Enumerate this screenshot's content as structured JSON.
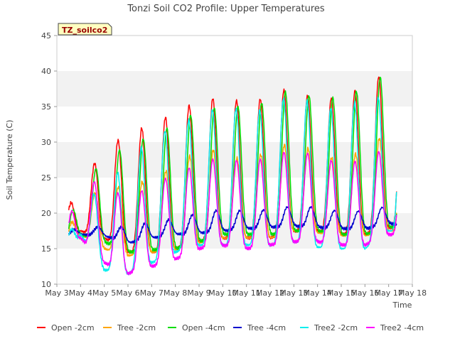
{
  "chart_data": {
    "type": "line",
    "title": "Tonzi Soil CO2 Profile: Upper Temperatures",
    "xlabel": "Time",
    "ylabel": "Soil Temperature (C)",
    "annotation": "TZ_soilco2",
    "ylim": [
      10,
      45
    ],
    "yticks": [
      10,
      15,
      20,
      25,
      30,
      35,
      40,
      45
    ],
    "xlim": [
      3,
      18
    ],
    "xticks": [
      3,
      4,
      5,
      6,
      7,
      8,
      9,
      10,
      11,
      12,
      13,
      14,
      15,
      16,
      17,
      18
    ],
    "xtick_labels": [
      "May 3",
      "May 4",
      "May 5",
      "May 6",
      "May 7",
      "May 8",
      "May 9",
      "May 10",
      "May 11",
      "May 12",
      "May 13",
      "May 14",
      "May 15",
      "May 16",
      "May 17",
      "May 18"
    ],
    "grid": "horizontal bands",
    "legend_position": "bottom",
    "series": [
      {
        "name": "Open -2cm",
        "color": "#ff0000",
        "days": [
          3.5,
          4,
          5,
          6,
          7,
          8,
          9,
          10,
          11,
          12,
          13,
          14,
          15,
          16,
          17
        ],
        "min": [
          16.5,
          17.5,
          16.5,
          14.5,
          14.5,
          15,
          16,
          16.5,
          16.5,
          16.5,
          17.5,
          17.5,
          17,
          17,
          18
        ],
        "max": [
          21,
          23.5,
          29.5,
          30.8,
          32.8,
          34,
          36,
          36.3,
          35.5,
          36.5,
          38,
          35.5,
          36.7,
          37.7,
          40.3
        ],
        "peak_phase": 0.58
      },
      {
        "name": "Tree -2cm",
        "color": "#ffa500",
        "days": [
          3.5,
          4,
          5,
          6,
          7,
          8,
          9,
          10,
          11,
          12,
          13,
          14,
          15,
          16,
          17
        ],
        "min": [
          15.5,
          17,
          15,
          14,
          14.5,
          14.8,
          15.8,
          16.5,
          16.5,
          16.5,
          17.5,
          17.2,
          16.8,
          16.8,
          17.5
        ],
        "max": [
          18,
          21,
          24,
          23.5,
          25,
          26.5,
          29,
          28.8,
          27,
          29,
          30,
          28.5,
          27.3,
          29,
          31.5
        ],
        "peak_phase": 0.6
      },
      {
        "name": "Open -4cm",
        "color": "#00dd00",
        "days": [
          3.5,
          4,
          5,
          6,
          7,
          8,
          9,
          10,
          11,
          12,
          13,
          14,
          15,
          16,
          17
        ],
        "min": [
          15.8,
          17,
          16,
          14.5,
          14.8,
          15,
          16,
          17,
          17,
          17,
          17.5,
          17.5,
          17,
          17,
          18
        ],
        "max": [
          19,
          23.5,
          27.8,
          29.5,
          31,
          32.5,
          34.5,
          35,
          35,
          35.8,
          37.8,
          35.8,
          36.5,
          37.5,
          40
        ],
        "peak_phase": 0.64
      },
      {
        "name": "Tree -4cm",
        "color": "#0000cc",
        "days": [
          3.5,
          4,
          5,
          6,
          7,
          8,
          9,
          10,
          11,
          12,
          13,
          14,
          15,
          16,
          17
        ],
        "min": [
          17,
          17,
          16.8,
          15.8,
          16.5,
          17,
          17.2,
          17.5,
          17.8,
          18,
          18.2,
          18,
          17.8,
          17.8,
          18.5
        ],
        "max": [
          17.5,
          17.8,
          18.2,
          18,
          18.8,
          19.2,
          20,
          20.5,
          20.3,
          20.5,
          21,
          20.8,
          20.2,
          20.3,
          21
        ],
        "peak_phase": 0.72
      },
      {
        "name": "Tree2 -2cm",
        "color": "#00eeee",
        "days": [
          3.5,
          4,
          5,
          6,
          7,
          8,
          9,
          10,
          11,
          12,
          13,
          14,
          15,
          16,
          17
        ],
        "min": [
          14.5,
          17,
          12,
          11.5,
          13,
          14.5,
          15.5,
          15.5,
          15.5,
          15.5,
          16,
          15.2,
          15,
          15,
          17.5
        ],
        "max": [
          17,
          21,
          24,
          27,
          31,
          32,
          34,
          35,
          34.5,
          34.5,
          37.5,
          34.5,
          35,
          36,
          36.5
        ],
        "peak_phase": 0.56
      },
      {
        "name": "Tree2 -4cm",
        "color": "#ff00ff",
        "days": [
          3.5,
          4,
          5,
          6,
          7,
          8,
          9,
          10,
          11,
          12,
          13,
          14,
          15,
          16,
          17
        ],
        "min": [
          15,
          16.5,
          13,
          11.5,
          12.5,
          13.5,
          15,
          15.5,
          15,
          15.5,
          16,
          16,
          15.5,
          15.5,
          17
        ],
        "max": [
          19,
          25,
          24,
          22,
          24,
          25.5,
          27,
          28,
          27,
          28,
          29,
          28,
          27,
          27.5,
          29.5
        ],
        "peak_phase": 0.58
      }
    ]
  }
}
